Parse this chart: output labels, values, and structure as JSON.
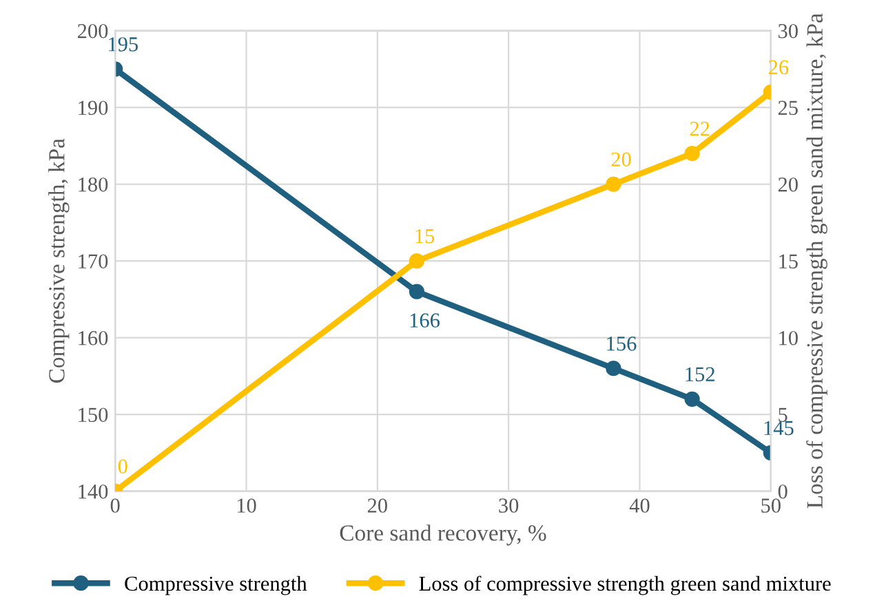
{
  "chart_data": {
    "type": "line",
    "xlabel": "Core sand recovery, %",
    "ylabel": "Compressive strength, kPa",
    "y2label": "Loss of compressive strength green sand mixture, kPa",
    "x": [
      0,
      23,
      38,
      44,
      50
    ],
    "series": [
      {
        "name": "Compressive strength",
        "color": "#1f6080",
        "values": [
          195,
          166,
          156,
          152,
          145
        ]
      },
      {
        "name": "Loss of compressive strength green sand mixture",
        "color": "#ffc000",
        "values": [
          0,
          15,
          20,
          22,
          26
        ],
        "axis": "y2"
      }
    ],
    "xlim": [
      0,
      50
    ],
    "xticks": [
      0,
      10,
      20,
      30,
      40,
      50
    ],
    "ylim": [
      140,
      200
    ],
    "yticks": [
      140,
      150,
      160,
      170,
      180,
      190,
      200
    ],
    "y2lim": [
      0,
      30
    ],
    "y2ticks": [
      0,
      5,
      10,
      15,
      20,
      25,
      30
    ],
    "grid": true,
    "legend": "bottom",
    "marker": "circle",
    "line_style": "solid",
    "data_labels": true
  }
}
